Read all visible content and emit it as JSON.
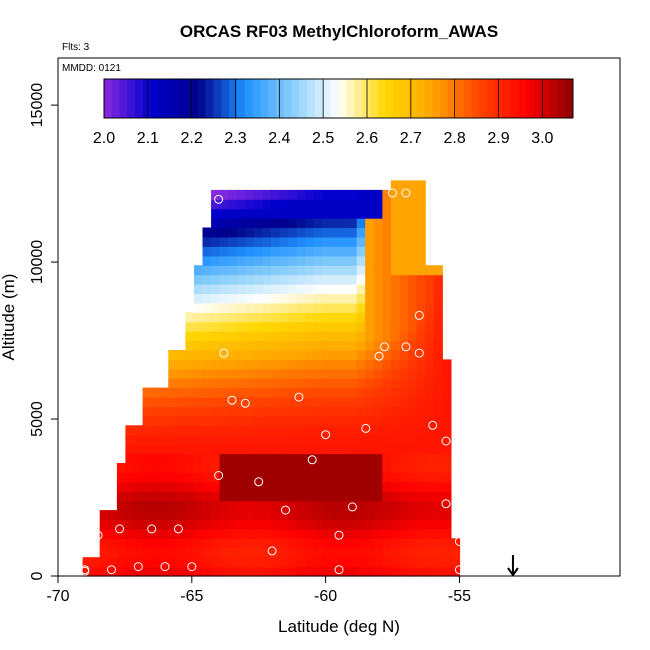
{
  "chart_data": {
    "type": "heatmap",
    "title": "ORCAS RF03 MethylChloroform_AWAS",
    "flights_label": "Flts: 3",
    "date_label": "MMDD: 0121",
    "xlabel": "Latitude (deg N)",
    "ylabel": "Altitude (m)",
    "xlim": [
      -70,
      -49
    ],
    "ylim": [
      0,
      16500
    ],
    "x_ticks": [
      "-70",
      "-65",
      "-60",
      "-55"
    ],
    "y_ticks": [
      "0",
      "5000",
      "10000",
      "15000"
    ],
    "colorbar": {
      "ticks": [
        "2.0",
        "2.1",
        "2.2",
        "2.3",
        "2.4",
        "2.5",
        "2.6",
        "2.7",
        "2.8",
        "2.9",
        "3.0"
      ],
      "min": 2.0,
      "max": 3.07,
      "colors": [
        "#8a2be2",
        "#0000cd",
        "#00008b",
        "#1e90ff",
        "#87cefa",
        "#ffffff",
        "#ffd700",
        "#ffa500",
        "#ff4500",
        "#ff0000",
        "#8b0000"
      ]
    },
    "grid": false,
    "marker_latitude": -53,
    "samples": [
      [
        -69,
        200
      ],
      [
        -69,
        150
      ],
      [
        -68.5,
        1300
      ],
      [
        -68,
        200
      ],
      [
        -67.7,
        1500
      ],
      [
        -67,
        300
      ],
      [
        -66.5,
        1500
      ],
      [
        -66,
        300
      ],
      [
        -65.5,
        1500
      ],
      [
        -65,
        300
      ],
      [
        -64,
        3200
      ],
      [
        -64,
        12000
      ],
      [
        -63.8,
        7100
      ],
      [
        -63.5,
        5600
      ],
      [
        -63,
        5500
      ],
      [
        -62.5,
        3000
      ],
      [
        -62,
        800
      ],
      [
        -61.5,
        2100
      ],
      [
        -61,
        5700
      ],
      [
        -60.5,
        3700
      ],
      [
        -60,
        4500
      ],
      [
        -59.5,
        1300
      ],
      [
        -59.5,
        200
      ],
      [
        -59,
        2200
      ],
      [
        -58.5,
        4700
      ],
      [
        -58,
        7000
      ],
      [
        -57.8,
        7300
      ],
      [
        -57.5,
        12200
      ],
      [
        -57,
        7300
      ],
      [
        -57,
        12200
      ],
      [
        -56.5,
        8300
      ],
      [
        -56.5,
        7100
      ],
      [
        -56,
        4800
      ],
      [
        -55.5,
        4300
      ],
      [
        -55.5,
        2300
      ],
      [
        -55,
        200
      ],
      [
        -55,
        1100
      ],
      [
        -56,
        12500
      ]
    ]
  }
}
